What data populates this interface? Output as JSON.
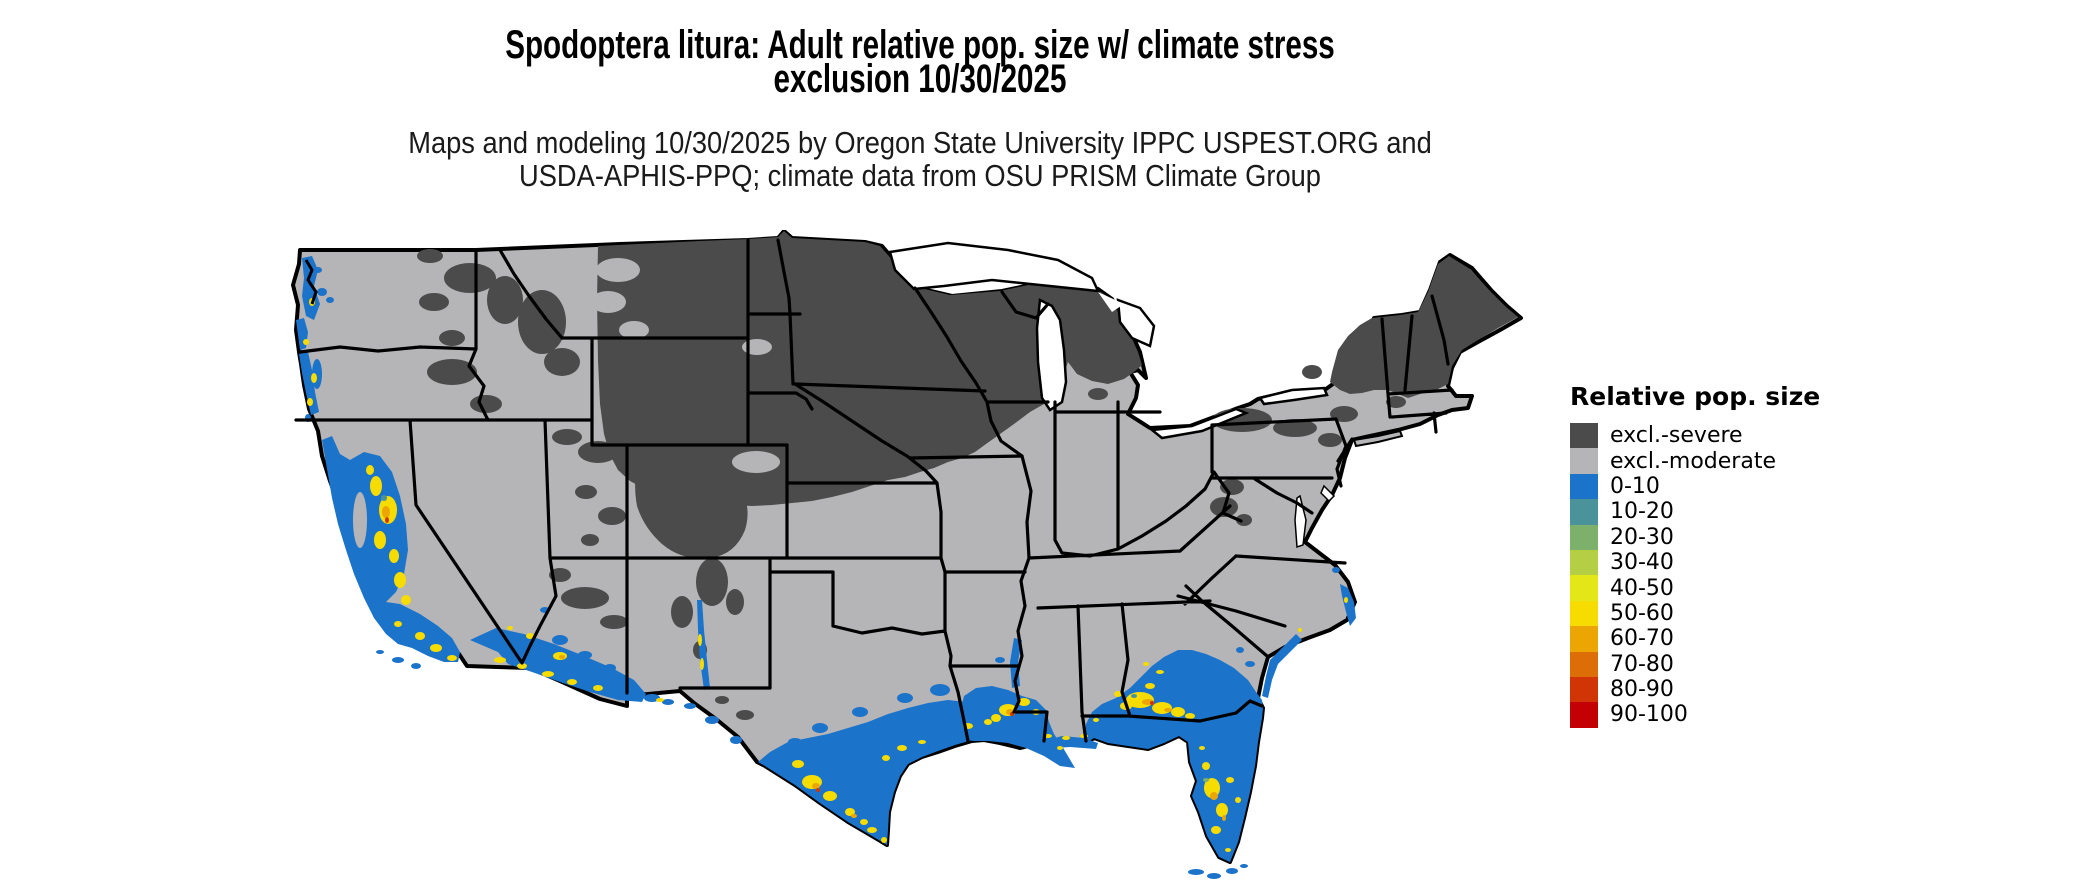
{
  "title": {
    "line1": "Spodoptera litura: Adult relative pop. size w/ climate stress",
    "line2": "exclusion 10/30/2025"
  },
  "subtitle": {
    "line1": "Maps and modeling 10/30/2025 by Oregon State University IPPC USPEST.ORG and",
    "line2": "USDA-APHIS-PPQ; climate data from OSU PRISM Climate Group"
  },
  "legend": {
    "title": "Relative pop. size",
    "entries": [
      {
        "label": "excl.-severe",
        "color": "#4b4b4b"
      },
      {
        "label": "excl.-moderate",
        "color": "#b5b5b7"
      },
      {
        "label": "0-10",
        "color": "#1c73ca"
      },
      {
        "label": "10-20",
        "color": "#4b939b"
      },
      {
        "label": "20-30",
        "color": "#7db06b"
      },
      {
        "label": "30-40",
        "color": "#b5cf45"
      },
      {
        "label": "40-50",
        "color": "#e3e717"
      },
      {
        "label": "50-60",
        "color": "#f6dc00"
      },
      {
        "label": "60-70",
        "color": "#eba603"
      },
      {
        "label": "70-80",
        "color": "#dd6e07"
      },
      {
        "label": "80-90",
        "color": "#d23505"
      },
      {
        "label": "90-100",
        "color": "#c30003"
      }
    ]
  },
  "map": {
    "region": "Contiguous United States",
    "palette": {
      "severe": "#4b4b4b",
      "moderate": "#b5b5b7",
      "blue": "#1c73ca",
      "teal": "#4b939b",
      "green": "#7db06b",
      "yellowgreen": "#b5cf45",
      "yellow": "#e3e717",
      "gold": "#f6dc00",
      "orange": "#eba603",
      "darkorange": "#dd6e07",
      "redorange": "#d23505",
      "red": "#c30003",
      "outline": "#000000",
      "water": "#ffffff"
    }
  }
}
